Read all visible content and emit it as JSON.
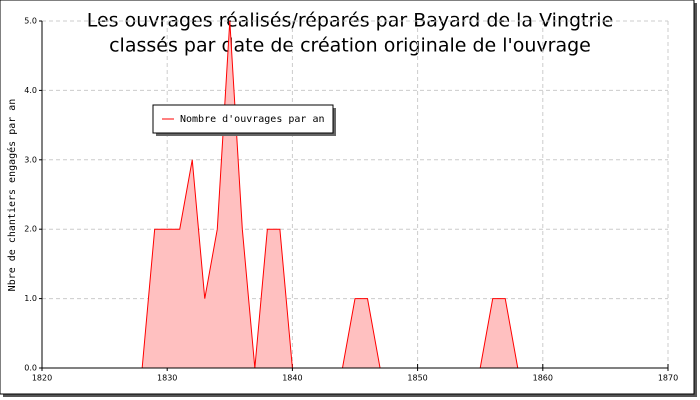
{
  "chart_data": {
    "type": "area",
    "title": [
      "Les ouvrages réalisés/réparés par Bayard de la Vingtrie",
      "classés par date de création originale de l'ouvrage"
    ],
    "y_label": "Nbre de chantiers engagés par an",
    "x": [
      1828,
      1829,
      1830,
      1831,
      1832,
      1833,
      1834,
      1835,
      1836,
      1837,
      1838,
      1839,
      1840,
      1841,
      1842,
      1843,
      1844,
      1845,
      1846,
      1847,
      1848,
      1849,
      1850,
      1851,
      1852,
      1853,
      1854,
      1855,
      1856,
      1857,
      1858
    ],
    "series": [
      {
        "name": "Nombre d'ouvrages par an",
        "color": "#ff0000",
        "fill": "#ffc0c0",
        "values": [
          0,
          2,
          2,
          2,
          3,
          1,
          2,
          5,
          2,
          0,
          2,
          2,
          0,
          0,
          0,
          0,
          0,
          1,
          1,
          0,
          0,
          0,
          0,
          0,
          0,
          0,
          0,
          0,
          1,
          1,
          0
        ]
      }
    ],
    "xlim": [
      1820,
      1870
    ],
    "xticks": [
      1820,
      1830,
      1840,
      1850,
      1860,
      1870
    ],
    "ylim": [
      0,
      5
    ],
    "yticks": [
      {
        "value": 0,
        "label": "0.0"
      },
      {
        "value": 1,
        "label": "1.0"
      },
      {
        "value": 2,
        "label": "2.0"
      },
      {
        "value": 3,
        "label": "3.0"
      },
      {
        "value": 4,
        "label": "4.0"
      },
      {
        "value": 5,
        "label": "5.0"
      }
    ],
    "grid": true
  }
}
